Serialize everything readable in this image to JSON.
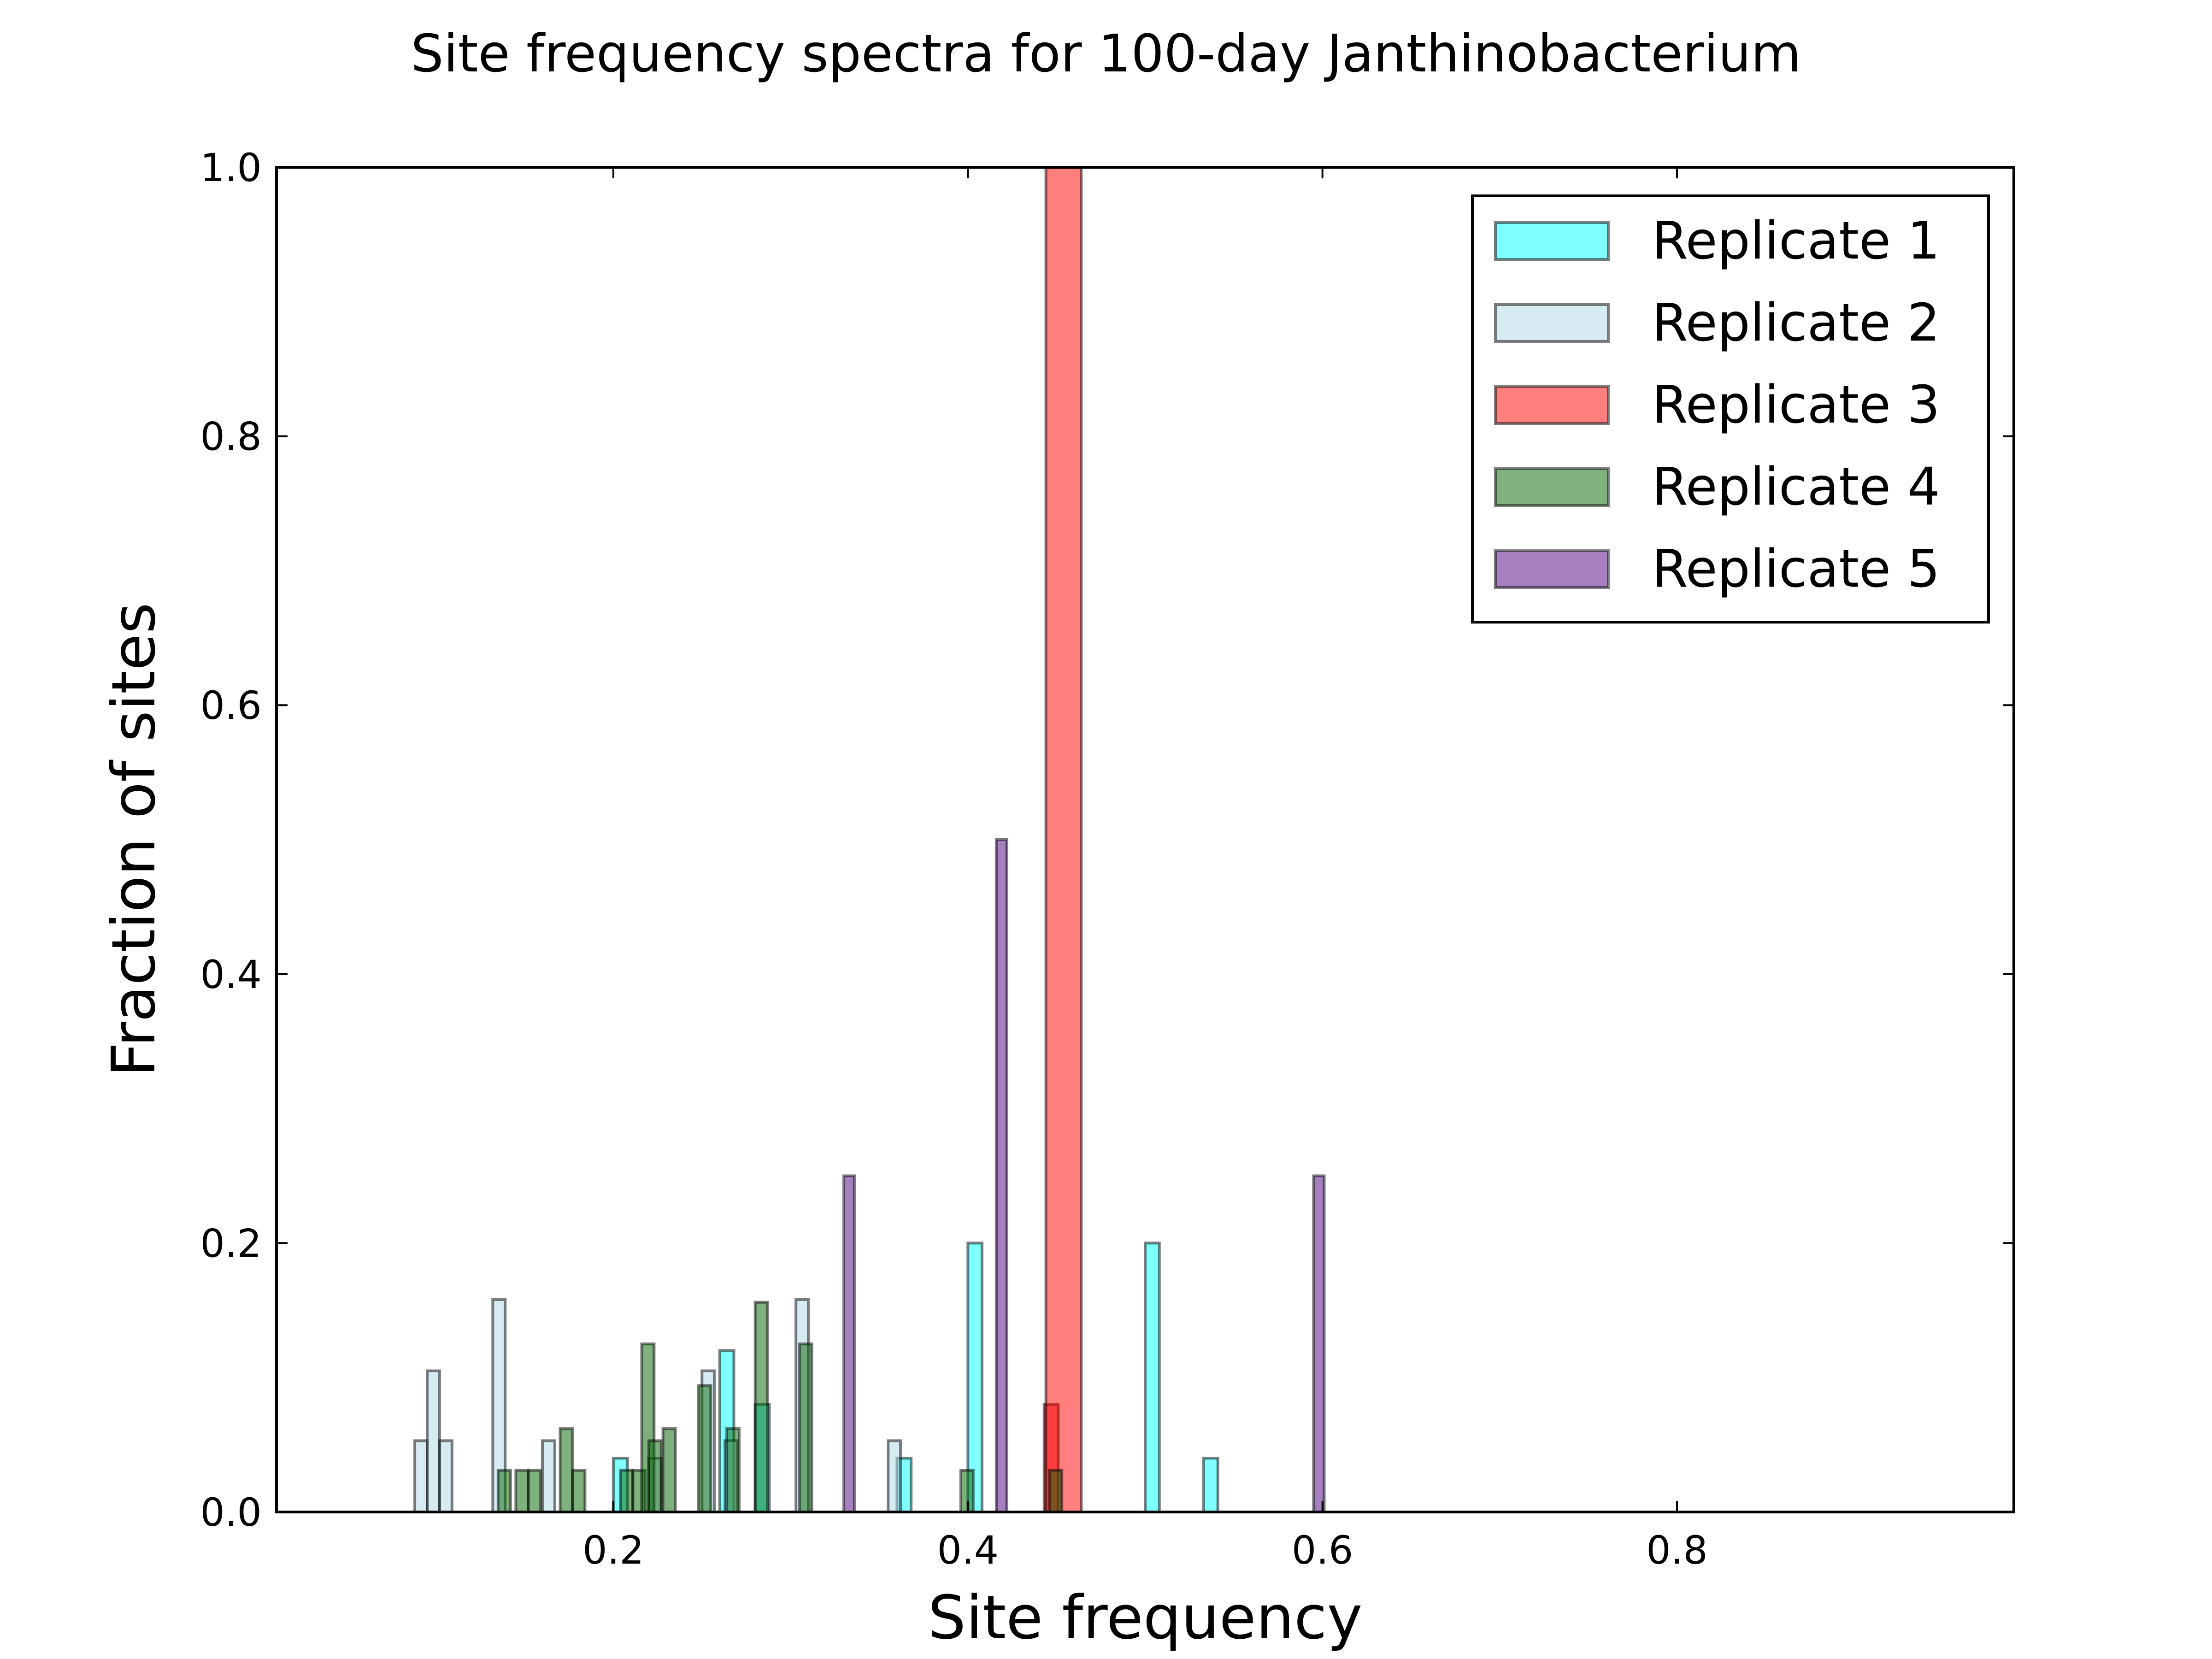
{
  "chart_data": {
    "type": "bar",
    "title": "Site frequency spectra for 100-day Janthinobacterium",
    "xlabel": "Site frequency",
    "ylabel": "Fraction of sites",
    "xlim": [
      0.01,
      0.99
    ],
    "ylim": [
      0.0,
      1.0
    ],
    "x_ticks": [
      0.2,
      0.4,
      0.6,
      0.8
    ],
    "x_tick_labels": [
      "0.2",
      "0.4",
      "0.6",
      "0.8"
    ],
    "y_ticks": [
      0.0,
      0.2,
      0.4,
      0.6,
      0.8,
      1.0
    ],
    "y_tick_labels": [
      "0.0",
      "0.2",
      "0.4",
      "0.6",
      "0.8",
      "1.0"
    ],
    "grid": false,
    "legend_position": "top-right",
    "bar_style": "histogram (overlaid, semi-transparent, outlined)",
    "series": [
      {
        "name": "Replicate 1",
        "color": "#00FFFF",
        "opacity": 0.5,
        "bars": [
          {
            "x0": 0.2,
            "x1": 0.208,
            "y": 0.04
          },
          {
            "x0": 0.26,
            "x1": 0.268,
            "y": 0.12
          },
          {
            "x0": 0.28,
            "x1": 0.288,
            "y": 0.08
          },
          {
            "x0": 0.36,
            "x1": 0.368,
            "y": 0.04
          },
          {
            "x0": 0.4,
            "x1": 0.408,
            "y": 0.2
          },
          {
            "x0": 0.5,
            "x1": 0.508,
            "y": 0.2
          },
          {
            "x0": 0.533,
            "x1": 0.541,
            "y": 0.04
          }
        ]
      },
      {
        "name": "Replicate 2",
        "color": "#ADD8E6",
        "opacity": 0.5,
        "bars": [
          {
            "x0": 0.088,
            "x1": 0.095,
            "y": 0.053
          },
          {
            "x0": 0.095,
            "x1": 0.102,
            "y": 0.105
          },
          {
            "x0": 0.102,
            "x1": 0.109,
            "y": 0.053
          },
          {
            "x0": 0.132,
            "x1": 0.139,
            "y": 0.158
          },
          {
            "x0": 0.16,
            "x1": 0.167,
            "y": 0.053
          },
          {
            "x0": 0.22,
            "x1": 0.227,
            "y": 0.04
          },
          {
            "x0": 0.25,
            "x1": 0.257,
            "y": 0.105
          },
          {
            "x0": 0.263,
            "x1": 0.27,
            "y": 0.053
          },
          {
            "x0": 0.303,
            "x1": 0.31,
            "y": 0.158
          },
          {
            "x0": 0.355,
            "x1": 0.362,
            "y": 0.053
          }
        ]
      },
      {
        "name": "Replicate 3",
        "color": "#FF0000",
        "opacity": 0.5,
        "bars": [
          {
            "x0": 0.443,
            "x1": 0.451,
            "y": 0.08
          },
          {
            "x0": 0.444,
            "x1": 0.464,
            "y": 1.0
          }
        ]
      },
      {
        "name": "Replicate 4",
        "color": "#006400",
        "opacity": 0.5,
        "bars": [
          {
            "x0": 0.135,
            "x1": 0.142,
            "y": 0.031
          },
          {
            "x0": 0.145,
            "x1": 0.152,
            "y": 0.031
          },
          {
            "x0": 0.152,
            "x1": 0.159,
            "y": 0.031
          },
          {
            "x0": 0.17,
            "x1": 0.177,
            "y": 0.062
          },
          {
            "x0": 0.177,
            "x1": 0.184,
            "y": 0.031
          },
          {
            "x0": 0.204,
            "x1": 0.211,
            "y": 0.031
          },
          {
            "x0": 0.211,
            "x1": 0.218,
            "y": 0.031
          },
          {
            "x0": 0.216,
            "x1": 0.223,
            "y": 0.125
          },
          {
            "x0": 0.22,
            "x1": 0.227,
            "y": 0.053
          },
          {
            "x0": 0.228,
            "x1": 0.235,
            "y": 0.062
          },
          {
            "x0": 0.248,
            "x1": 0.255,
            "y": 0.094
          },
          {
            "x0": 0.264,
            "x1": 0.271,
            "y": 0.062
          },
          {
            "x0": 0.28,
            "x1": 0.287,
            "y": 0.156
          },
          {
            "x0": 0.305,
            "x1": 0.312,
            "y": 0.125
          },
          {
            "x0": 0.396,
            "x1": 0.403,
            "y": 0.031
          },
          {
            "x0": 0.446,
            "x1": 0.453,
            "y": 0.031
          }
        ]
      },
      {
        "name": "Replicate 5",
        "color": "#4B0082",
        "opacity": 0.5,
        "bars": [
          {
            "x0": 0.33,
            "x1": 0.336,
            "y": 0.25
          },
          {
            "x0": 0.416,
            "x1": 0.422,
            "y": 0.5
          },
          {
            "x0": 0.595,
            "x1": 0.601,
            "y": 0.25
          }
        ]
      }
    ]
  }
}
